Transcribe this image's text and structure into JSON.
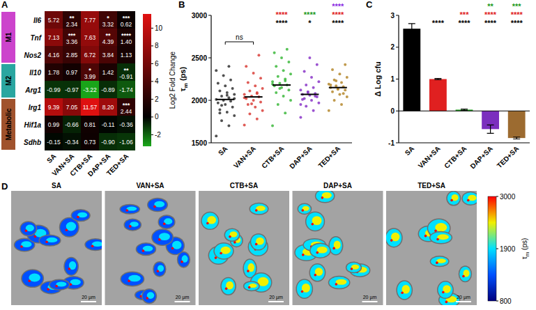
{
  "chart_data": [
    {
      "panel": "A",
      "type": "heatmap",
      "x_categories": [
        "SA",
        "VAN+SA",
        "CTB+SA",
        "DAP+SA",
        "TED+SA"
      ],
      "y_categories": [
        "Il6",
        "Tnf",
        "Nos2",
        "Il10",
        "Arg1",
        "Irg1",
        "Hif1a",
        "Sdhb"
      ],
      "row_groups": [
        {
          "name": "M1",
          "color": "#cc44cc",
          "rows": [
            0,
            2
          ]
        },
        {
          "name": "M2",
          "color": "#2aa6a0",
          "rows": [
            3,
            4
          ]
        },
        {
          "name": "Metabolic",
          "color": "#a0522d",
          "rows": [
            5,
            7
          ]
        }
      ],
      "values": [
        [
          5.72,
          2.34,
          7.77,
          3.32,
          0.62
        ],
        [
          7.13,
          3.36,
          7.63,
          4.39,
          1.4
        ],
        [
          4.16,
          2.85,
          6.72,
          3.84,
          1.13
        ],
        [
          1.78,
          0.97,
          3.99,
          1.42,
          -0.91
        ],
        [
          -0.99,
          -0.97,
          -3.22,
          -0.89,
          -1.74
        ],
        [
          9.39,
          7.05,
          11.57,
          8.2,
          2.44
        ],
        [
          0.99,
          -0.66,
          0.81,
          -0.11,
          -0.36
        ],
        [
          -0.15,
          -0.34,
          0.73,
          -0.9,
          -1.06
        ]
      ],
      "value_labels": [
        [
          "5.72",
          "2.34",
          "7.77",
          "3.32",
          "0.62"
        ],
        [
          "7.13",
          "3.36",
          "7.63",
          "4.39",
          "1.40"
        ],
        [
          "4.16",
          "2.85",
          "6.72",
          "3.84",
          "1.13"
        ],
        [
          "1.78",
          "0.97",
          "3.99",
          "1.42",
          "-0.91"
        ],
        [
          "-0.99",
          "-0.97",
          "-3.22",
          "-0.89",
          "-1.74"
        ],
        [
          "9.39",
          "7.05",
          "11.57",
          "8.20",
          "2.44"
        ],
        [
          "0.99",
          "-0.66",
          "0.81",
          "-0.11",
          "-0.36"
        ],
        [
          "-0.15",
          "-0.34",
          "0.73",
          "-0.90",
          "-1.06"
        ]
      ],
      "stars": [
        [
          null,
          "**",
          null,
          "*",
          "***"
        ],
        [
          null,
          "***",
          null,
          "**",
          "****"
        ],
        [
          null,
          null,
          null,
          null,
          null
        ],
        [
          null,
          null,
          "*",
          null,
          "**"
        ],
        [
          null,
          null,
          null,
          null,
          null
        ],
        [
          null,
          null,
          null,
          null,
          "***"
        ],
        [
          null,
          null,
          null,
          null,
          null
        ],
        [
          null,
          null,
          null,
          null,
          null
        ]
      ],
      "data_labels": true,
      "colorbar": {
        "label": "Log2 Fold Change",
        "range": [
          -3.3,
          11.6
        ],
        "ticks": [
          -2,
          0,
          2,
          4,
          6,
          8,
          10
        ],
        "colors": [
          "#1aa81a",
          "#000000",
          "#e01010"
        ]
      }
    },
    {
      "panel": "B",
      "type": "strip",
      "ylabel": "τm (ps)",
      "categories": [
        "SA",
        "VAN+SA",
        "CTB+SA",
        "DAP+SA",
        "TED+SA"
      ],
      "colors": [
        "#333333",
        "#d9403a",
        "#3cb83c",
        "#8a35c8",
        "#b5882e"
      ],
      "values": [
        [
          1580,
          1700,
          1760,
          1820,
          1860,
          1890,
          1920,
          1950,
          1970,
          1990,
          2000,
          2010,
          2030,
          2050,
          2070,
          2090,
          2110,
          2140,
          2170,
          2200,
          2240,
          2290,
          2350,
          2400,
          1940,
          2020,
          2060,
          1850
        ],
        [
          1710,
          1780,
          1840,
          1880,
          1920,
          1950,
          1980,
          2000,
          2020,
          2040,
          2050,
          2070,
          2090,
          2110,
          2140,
          2170,
          2210,
          2260,
          2320,
          2400,
          2530,
          1960,
          2030,
          2080
        ],
        [
          1700,
          1850,
          1950,
          2000,
          2050,
          2090,
          2120,
          2150,
          2170,
          2180,
          2200,
          2220,
          2250,
          2280,
          2310,
          2350,
          2400,
          2450,
          2500,
          2560,
          2600,
          2140,
          2190,
          2230
        ],
        [
          1800,
          1880,
          1930,
          1970,
          2000,
          2020,
          2040,
          2060,
          2070,
          2080,
          2100,
          2120,
          2150,
          2180,
          2220,
          2270,
          2340,
          2420,
          2500,
          2010,
          2050,
          2090,
          1950
        ],
        [
          1880,
          1950,
          2000,
          2040,
          2070,
          2100,
          2120,
          2140,
          2150,
          2160,
          2170,
          2190,
          2210,
          2240,
          2270,
          2310,
          2360,
          2420,
          2130,
          2180,
          2080,
          2230
        ]
      ],
      "means": [
        2010,
        2040,
        2180,
        2070,
        2150
      ],
      "ylim": [
        1500,
        3000
      ],
      "yticks": [
        1500,
        2000,
        2500,
        3000
      ],
      "bracket": {
        "text": "ns",
        "from": 0,
        "to": 1
      },
      "significance": [
        null,
        null,
        [
          {
            "text": "****",
            "color": "#e02020"
          },
          {
            "text": "****",
            "color": "#000000"
          }
        ],
        [
          {
            "text": "****",
            "color": "#1a9a1a"
          },
          {
            "text": "*",
            "color": "#000000"
          }
        ],
        [
          {
            "text": "****",
            "color": "#8a2be2"
          },
          {
            "text": "****",
            "color": "#e02020"
          },
          {
            "text": "****",
            "color": "#000000"
          }
        ]
      ]
    },
    {
      "panel": "C",
      "type": "bar",
      "ylabel": "Δ Log cfu",
      "categories": [
        "SA",
        "VAN+SA",
        "CTB+SA",
        "DAP+SA",
        "TED+SA"
      ],
      "values": [
        2.58,
        1.0,
        0.04,
        -0.57,
        -0.85
      ],
      "errors": [
        0.16,
        0.02,
        0.02,
        0.13,
        0.03
      ],
      "colors": [
        "#000000",
        "#e02020",
        "#20a020",
        "#7b2fbe",
        "#9c6b30"
      ],
      "ylim": [
        -1,
        3
      ],
      "yticks": [
        -1,
        0,
        1,
        2,
        3
      ],
      "significance": [
        null,
        [
          {
            "text": "****",
            "color": "#000000"
          }
        ],
        [
          {
            "text": "***",
            "color": "#e02020"
          },
          {
            "text": "****",
            "color": "#000000"
          }
        ],
        [
          {
            "text": "**",
            "color": "#1a9a1a"
          },
          {
            "text": "****",
            "color": "#e02020"
          },
          {
            "text": "****",
            "color": "#000000"
          }
        ],
        [
          {
            "text": "***",
            "color": "#1a9a1a"
          },
          {
            "text": "****",
            "color": "#e02020"
          },
          {
            "text": "****",
            "color": "#000000"
          }
        ]
      ]
    }
  ],
  "image_panel": {
    "panel": "D",
    "labels": [
      "SA",
      "VAN+SA",
      "CTB+SA",
      "DAP+SA",
      "TED+SA"
    ],
    "scale_bar": "20 µm",
    "colorbar": {
      "label": "τm (ps)",
      "range": [
        800,
        3000
      ],
      "ticks": [
        800,
        1900,
        3000
      ],
      "colors": [
        "#00007f",
        "#0050ff",
        "#00e0ff",
        "#f0f000",
        "#ff0000"
      ]
    }
  }
}
